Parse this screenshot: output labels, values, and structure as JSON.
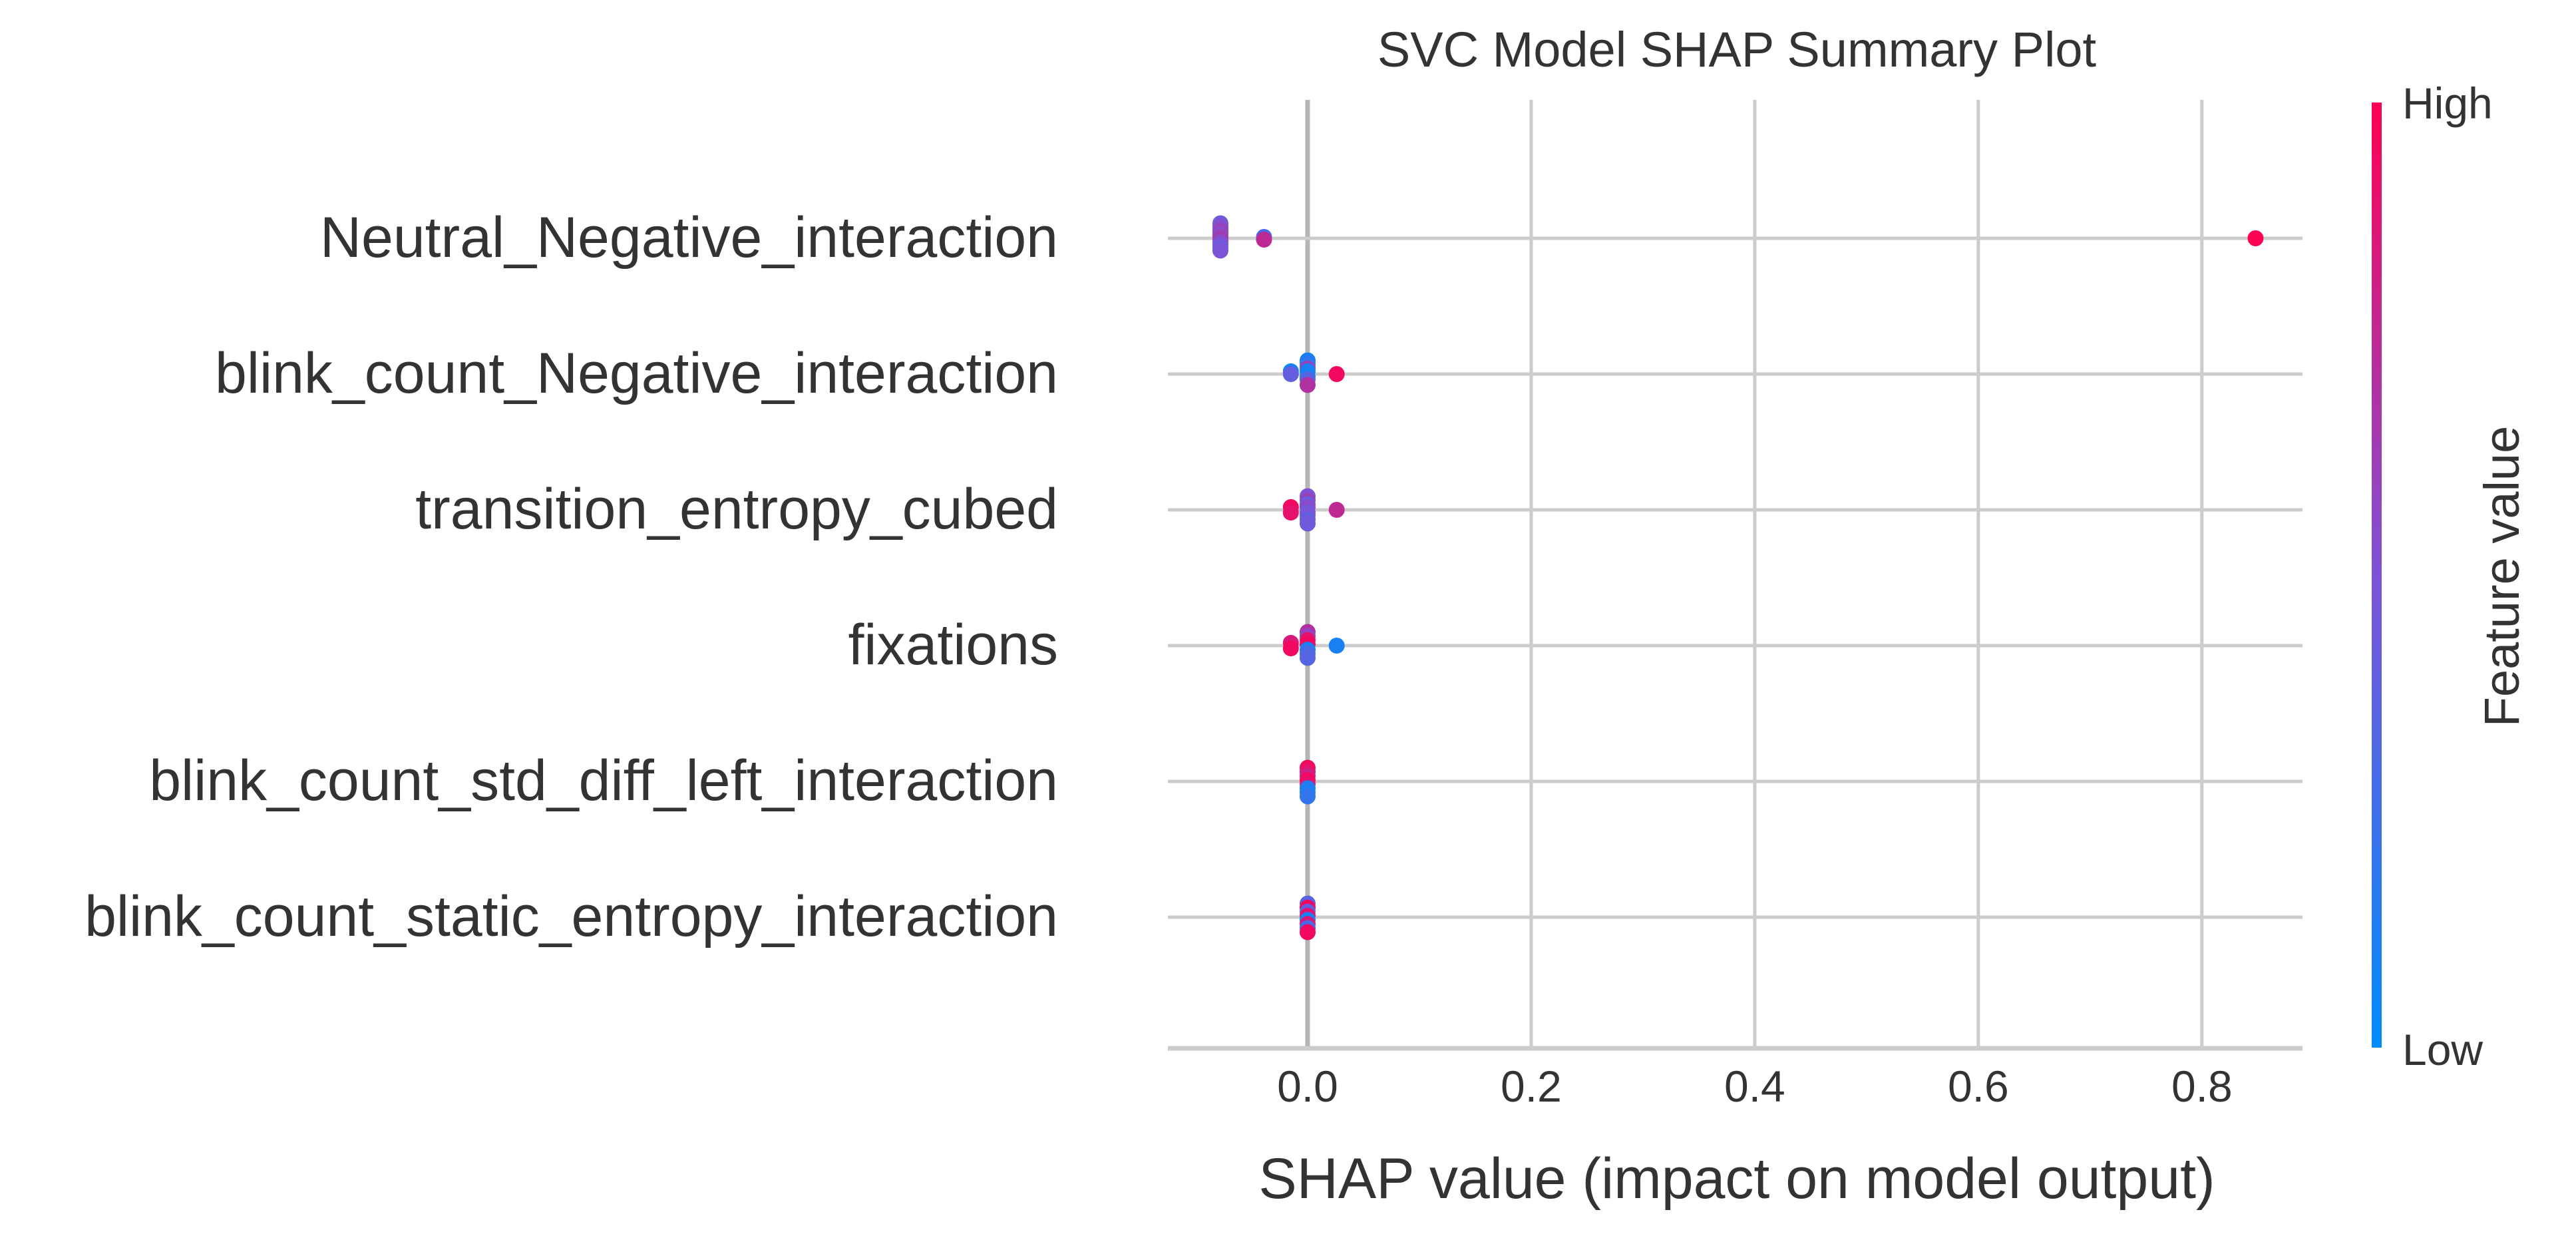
{
  "chart_data": {
    "type": "scatter",
    "subtype": "shap_beeswarm",
    "title": "SVC Model SHAP Summary Plot",
    "xlabel": "SHAP value (impact on model output)",
    "ylabel": "",
    "xlim": [
      -0.125,
      0.89
    ],
    "x_ticks": [
      0.0,
      0.2,
      0.4,
      0.6,
      0.8
    ],
    "x_tick_labels": [
      "0.0",
      "0.2",
      "0.4",
      "0.6",
      "0.8"
    ],
    "grid": true,
    "zero_line": true,
    "colorbar": {
      "label": "Feature value",
      "high_label": "High",
      "low_label": "Low",
      "low_color": "#008bfb",
      "high_color": "#ff0052"
    },
    "features": [
      "Neutral_Negative_interaction",
      "blink_count_Negative_interaction",
      "transition_entropy_cubed",
      "fixations",
      "blink_count_std_diff_left_interaction",
      "blink_count_static_entropy_interaction"
    ],
    "points": [
      [
        {
          "x": -0.078,
          "v": 0.45,
          "j": -11
        },
        {
          "x": -0.078,
          "v": 0.5,
          "j": -9
        },
        {
          "x": -0.078,
          "v": 0.55,
          "j": -7
        },
        {
          "x": -0.078,
          "v": 0.6,
          "j": -5
        },
        {
          "x": -0.078,
          "v": 0.55,
          "j": -3
        },
        {
          "x": -0.078,
          "v": 0.6,
          "j": -1
        },
        {
          "x": -0.078,
          "v": 0.65,
          "j": 1
        },
        {
          "x": -0.078,
          "v": 0.55,
          "j": 3
        },
        {
          "x": -0.078,
          "v": 0.5,
          "j": 5
        },
        {
          "x": -0.078,
          "v": 0.45,
          "j": 7
        },
        {
          "x": -0.078,
          "v": 0.5,
          "j": 9
        },
        {
          "x": -0.039,
          "v": 0.3,
          "j": -1
        },
        {
          "x": -0.039,
          "v": 0.75,
          "j": 1
        },
        {
          "x": 0.848,
          "v": 1.0,
          "j": 0
        }
      ],
      [
        {
          "x": 0.0,
          "v": 0.1,
          "j": -10
        },
        {
          "x": 0.0,
          "v": 0.15,
          "j": -8
        },
        {
          "x": 0.0,
          "v": 0.2,
          "j": -6
        },
        {
          "x": 0.0,
          "v": 0.6,
          "j": -4
        },
        {
          "x": 0.0,
          "v": 0.1,
          "j": -2
        },
        {
          "x": 0.0,
          "v": 0.1,
          "j": 2
        },
        {
          "x": 0.0,
          "v": 0.35,
          "j": 4
        },
        {
          "x": 0.0,
          "v": 0.7,
          "j": 8
        },
        {
          "x": -0.015,
          "v": 0.05,
          "j": -2
        },
        {
          "x": -0.015,
          "v": 0.4,
          "j": 0
        },
        {
          "x": 0.026,
          "v": 0.95,
          "j": 0
        }
      ],
      [
        {
          "x": 0.0,
          "v": 0.5,
          "j": -10
        },
        {
          "x": 0.0,
          "v": 0.6,
          "j": -7
        },
        {
          "x": 0.0,
          "v": 0.4,
          "j": -4
        },
        {
          "x": 0.0,
          "v": 0.55,
          "j": -2
        },
        {
          "x": 0.0,
          "v": 0.45,
          "j": 2
        },
        {
          "x": 0.0,
          "v": 0.5,
          "j": 4
        },
        {
          "x": 0.0,
          "v": 0.4,
          "j": 7
        },
        {
          "x": 0.0,
          "v": 0.45,
          "j": 10
        },
        {
          "x": -0.015,
          "v": 0.95,
          "j": -2
        },
        {
          "x": -0.015,
          "v": 0.9,
          "j": 2
        },
        {
          "x": 0.026,
          "v": 0.75,
          "j": 0
        }
      ],
      [
        {
          "x": 0.0,
          "v": 0.7,
          "j": -10
        },
        {
          "x": 0.0,
          "v": 0.6,
          "j": -7
        },
        {
          "x": 0.0,
          "v": 0.9,
          "j": -4
        },
        {
          "x": 0.0,
          "v": 0.95,
          "j": -1
        },
        {
          "x": 0.0,
          "v": 0.1,
          "j": 3
        },
        {
          "x": 0.0,
          "v": 0.3,
          "j": 6
        },
        {
          "x": 0.0,
          "v": 0.35,
          "j": 9
        },
        {
          "x": -0.015,
          "v": 0.85,
          "j": -2
        },
        {
          "x": -0.015,
          "v": 0.95,
          "j": 2
        },
        {
          "x": 0.026,
          "v": 0.1,
          "j": 0
        }
      ],
      [
        {
          "x": 0.0,
          "v": 0.95,
          "j": -10
        },
        {
          "x": 0.0,
          "v": 0.9,
          "j": -7
        },
        {
          "x": 0.0,
          "v": 0.8,
          "j": -4
        },
        {
          "x": 0.0,
          "v": 0.95,
          "j": -1
        },
        {
          "x": 0.0,
          "v": 0.9,
          "j": 2
        },
        {
          "x": 0.0,
          "v": 0.15,
          "j": 5
        },
        {
          "x": 0.0,
          "v": 0.1,
          "j": 8
        },
        {
          "x": 0.0,
          "v": 0.2,
          "j": 11
        }
      ],
      [
        {
          "x": 0.0,
          "v": 0.35,
          "j": -10
        },
        {
          "x": 0.0,
          "v": 0.95,
          "j": -7
        },
        {
          "x": 0.0,
          "v": 0.4,
          "j": -4
        },
        {
          "x": 0.0,
          "v": 0.9,
          "j": -1
        },
        {
          "x": 0.0,
          "v": 0.1,
          "j": 2
        },
        {
          "x": 0.0,
          "v": 0.85,
          "j": 5
        },
        {
          "x": 0.0,
          "v": 0.3,
          "j": 8
        },
        {
          "x": 0.0,
          "v": 0.95,
          "j": 11
        }
      ]
    ]
  }
}
